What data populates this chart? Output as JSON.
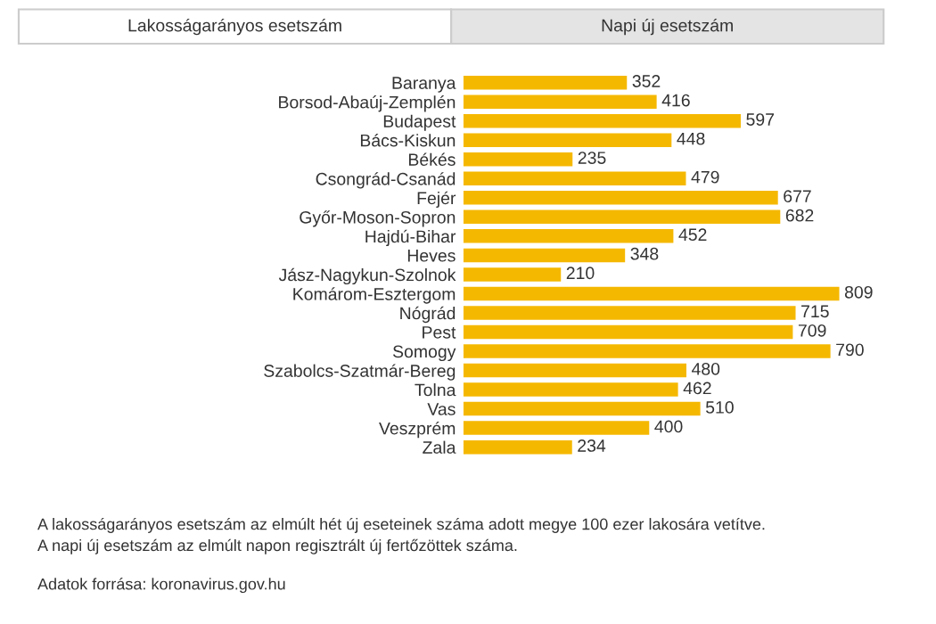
{
  "chart_data": {
    "type": "bar",
    "orientation": "horizontal",
    "data_labels": true,
    "grid": false,
    "legend": false,
    "color": "#f5b800",
    "categories": [
      "Baranya",
      "Borsod-Abaúj-Zemplén",
      "Budapest",
      "Bács-Kiskun",
      "Békés",
      "Csongrád-Csanád",
      "Fejér",
      "Győr-Moson-Sopron",
      "Hajdú-Bihar",
      "Heves",
      "Jász-Nagykun-Szolnok",
      "Komárom-Esztergom",
      "Nógrád",
      "Pest",
      "Somogy",
      "Szabolcs-Szatmár-Bereg",
      "Tolna",
      "Vas",
      "Veszprém",
      "Zala"
    ],
    "values": [
      352,
      416,
      597,
      448,
      235,
      479,
      677,
      682,
      452,
      348,
      210,
      809,
      715,
      709,
      790,
      480,
      462,
      510,
      400,
      234
    ],
    "annotations": [
      "Lakosságarányos esetszám",
      "Napi új esetszám",
      "A lakosságarányos esetszám az elmúlt hét új eseteinek száma adott megye 100 ezer lakosára vetítve.",
      "A napi új esetszám az elmúlt napon regisztrált új fertőzöttek száma.",
      "Adatok forrása: koronavirus.gov.hu"
    ]
  }
}
